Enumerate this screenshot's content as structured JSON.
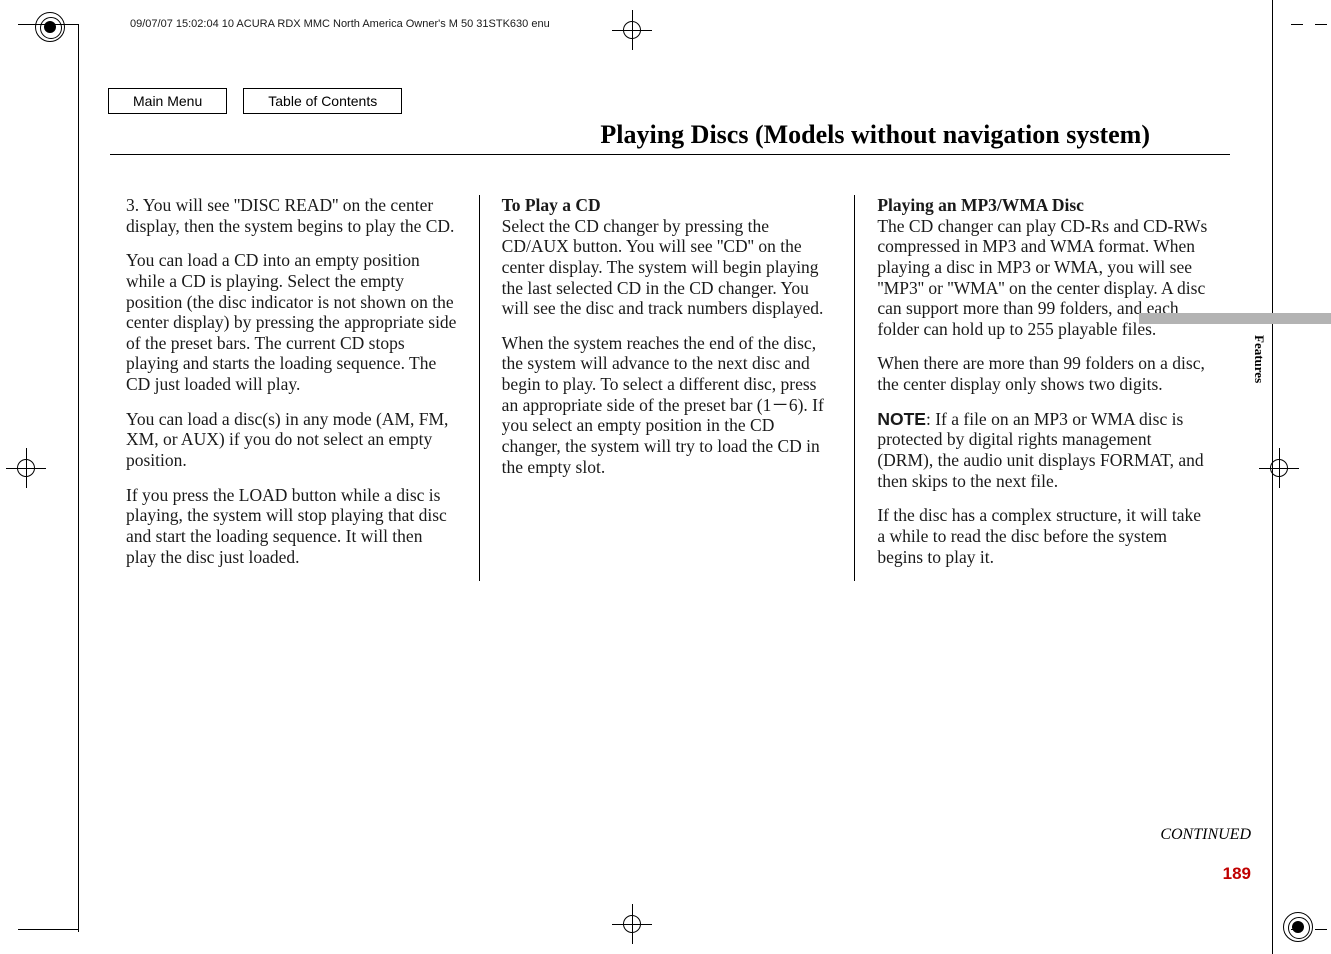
{
  "meta": {
    "header_text": "09/07/07 15:02:04   10 ACURA RDX MMC North America Owner's M 50 31STK630 enu"
  },
  "nav": {
    "main_menu": "Main Menu",
    "toc": "Table of Contents"
  },
  "title": "Playing Discs (Models without navigation system)",
  "col1": {
    "p1": "3. You will see ''DISC READ'' on the center display, then the system begins to play the CD.",
    "p2": "You can load a CD into an empty position while a CD is playing. Select the empty position (the disc indicator is not shown on the center display) by pressing the appropriate side of the preset bars. The current CD stops playing and starts the loading sequence. The CD just loaded will play.",
    "p3": "You can load a disc(s) in any mode (AM, FM, XM, or AUX) if you do not select an empty position.",
    "p4": "If you press the LOAD button while a disc is playing, the system will stop playing that disc and start the loading sequence. It will then play the disc just loaded."
  },
  "col2": {
    "h": "To Play a CD",
    "p1": "Select the CD changer by pressing the CD/AUX button. You will see ''CD'' on the center display. The system will begin playing the last selected CD in the CD changer. You will see the disc and track numbers displayed.",
    "p2": "When the system reaches the end of the disc, the system will advance to the next disc and begin to play. To select a different disc, press an appropriate side of the preset bar (1－6). If you select an empty position in the CD changer, the system will try to load the CD in the empty slot."
  },
  "col3": {
    "h": "Playing an MP3/WMA Disc",
    "p1": "The CD changer can play CD-Rs and CD-RWs compressed in MP3 and WMA format. When playing a disc in MP3 or WMA, you will see ''MP3'' or ''WMA'' on the center display. A disc can support more than 99 folders, and each folder can hold up to 255 playable files.",
    "p2": "When there are more than 99 folders on a disc, the center display only shows two digits.",
    "note_label": "NOTE",
    "p3": ": If a file on an MP3 or WMA disc is protected by digital rights management (DRM), the audio unit displays FORMAT, and then skips to the next file.",
    "p4": "If the disc has a complex structure, it will take a while to read the disc before the system begins to play it."
  },
  "footer": {
    "continued": "CONTINUED",
    "page": "189",
    "side_label": "Features"
  },
  "colors": {
    "page_num": "#c00000",
    "tab": "#b3b3b3"
  }
}
